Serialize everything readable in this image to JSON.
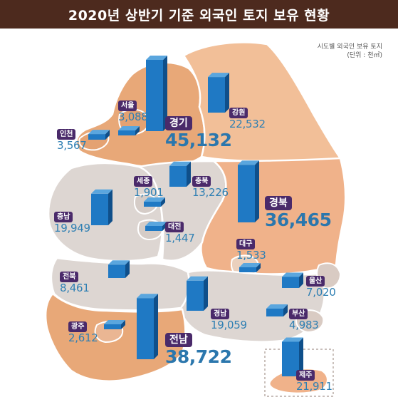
{
  "title": "2020년 상반기 기준 외국인 토지 보유 현황",
  "legend": {
    "caption": "시도별 외국인 보유 토지",
    "unit": "(단위 : 천㎡)"
  },
  "colors": {
    "header": "#4d2a1e",
    "bar": "#1f79c4",
    "badge": "#4a2a6a",
    "value_text": "#2e7fb3",
    "map_high": "#e8a878",
    "map_low": "#ddd6d2"
  },
  "regions": {
    "seoul": {
      "name": "서울",
      "value": "3,088"
    },
    "incheon": {
      "name": "인천",
      "value": "3,567"
    },
    "gyeonggi": {
      "name": "경기",
      "value": "45,132"
    },
    "gangwon": {
      "name": "강원",
      "value": "22,532"
    },
    "sejong": {
      "name": "세종",
      "value": "1,901"
    },
    "chungbuk": {
      "name": "충북",
      "value": "13,226"
    },
    "chungnam": {
      "name": "충남",
      "value": "19,949"
    },
    "daejeon": {
      "name": "대전",
      "value": "1,447"
    },
    "gyeongbuk": {
      "name": "경북",
      "value": "36,465"
    },
    "daegu": {
      "name": "대구",
      "value": "1,533"
    },
    "jeonbuk": {
      "name": "전북",
      "value": "8,461"
    },
    "ulsan": {
      "name": "울산",
      "value": "7,020"
    },
    "gyeongnam": {
      "name": "경남",
      "value": "19,059"
    },
    "busan": {
      "name": "부산",
      "value": "4,983"
    },
    "gwangju": {
      "name": "광주",
      "value": "2,612"
    },
    "jeonnam": {
      "name": "전남",
      "value": "38,722"
    },
    "jeju": {
      "name": "제주",
      "value": "21,911"
    }
  }
}
